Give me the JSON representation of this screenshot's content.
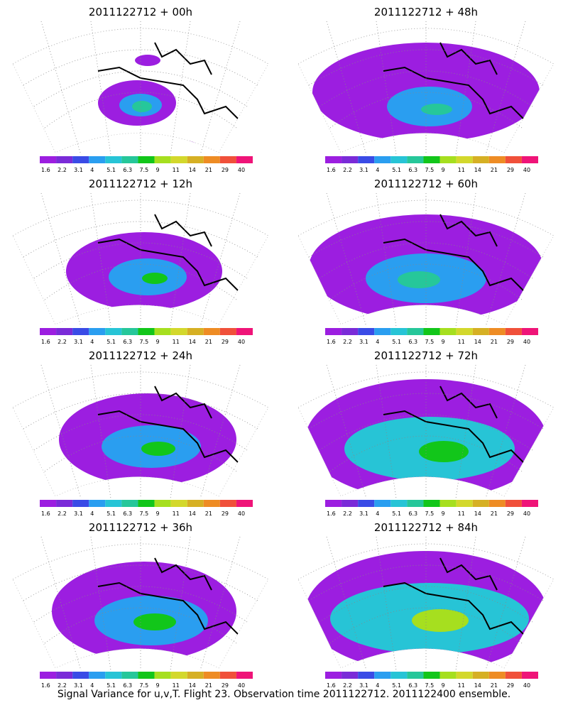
{
  "panels": [
    {
      "title": "2011122712 + 00h"
    },
    {
      "title": "2011122712 + 48h"
    },
    {
      "title": "2011122712 + 12h"
    },
    {
      "title": "2011122712 + 60h"
    },
    {
      "title": "2011122712 + 24h"
    },
    {
      "title": "2011122712 + 72h"
    },
    {
      "title": "2011122712 + 36h"
    },
    {
      "title": "2011122712 + 84h"
    }
  ],
  "colorbar": {
    "labels": [
      "1.6",
      "2.2",
      "3.1",
      "4",
      "5.1",
      "6.3",
      "7.5",
      "9",
      "11",
      "14",
      "21",
      "29",
      "40"
    ],
    "colors": [
      "#9c1ee0",
      "#7a2bd8",
      "#3a4be6",
      "#2a9ef0",
      "#27c4d6",
      "#26c79a",
      "#12c61a",
      "#a6df1f",
      "#d3d82c",
      "#d6b024",
      "#ee8c24",
      "#f0503a",
      "#ef1478"
    ]
  },
  "footer": "Signal Variance for u,v,T. Flight 23. Observation time 2011122712. 2011122400 ensemble."
}
